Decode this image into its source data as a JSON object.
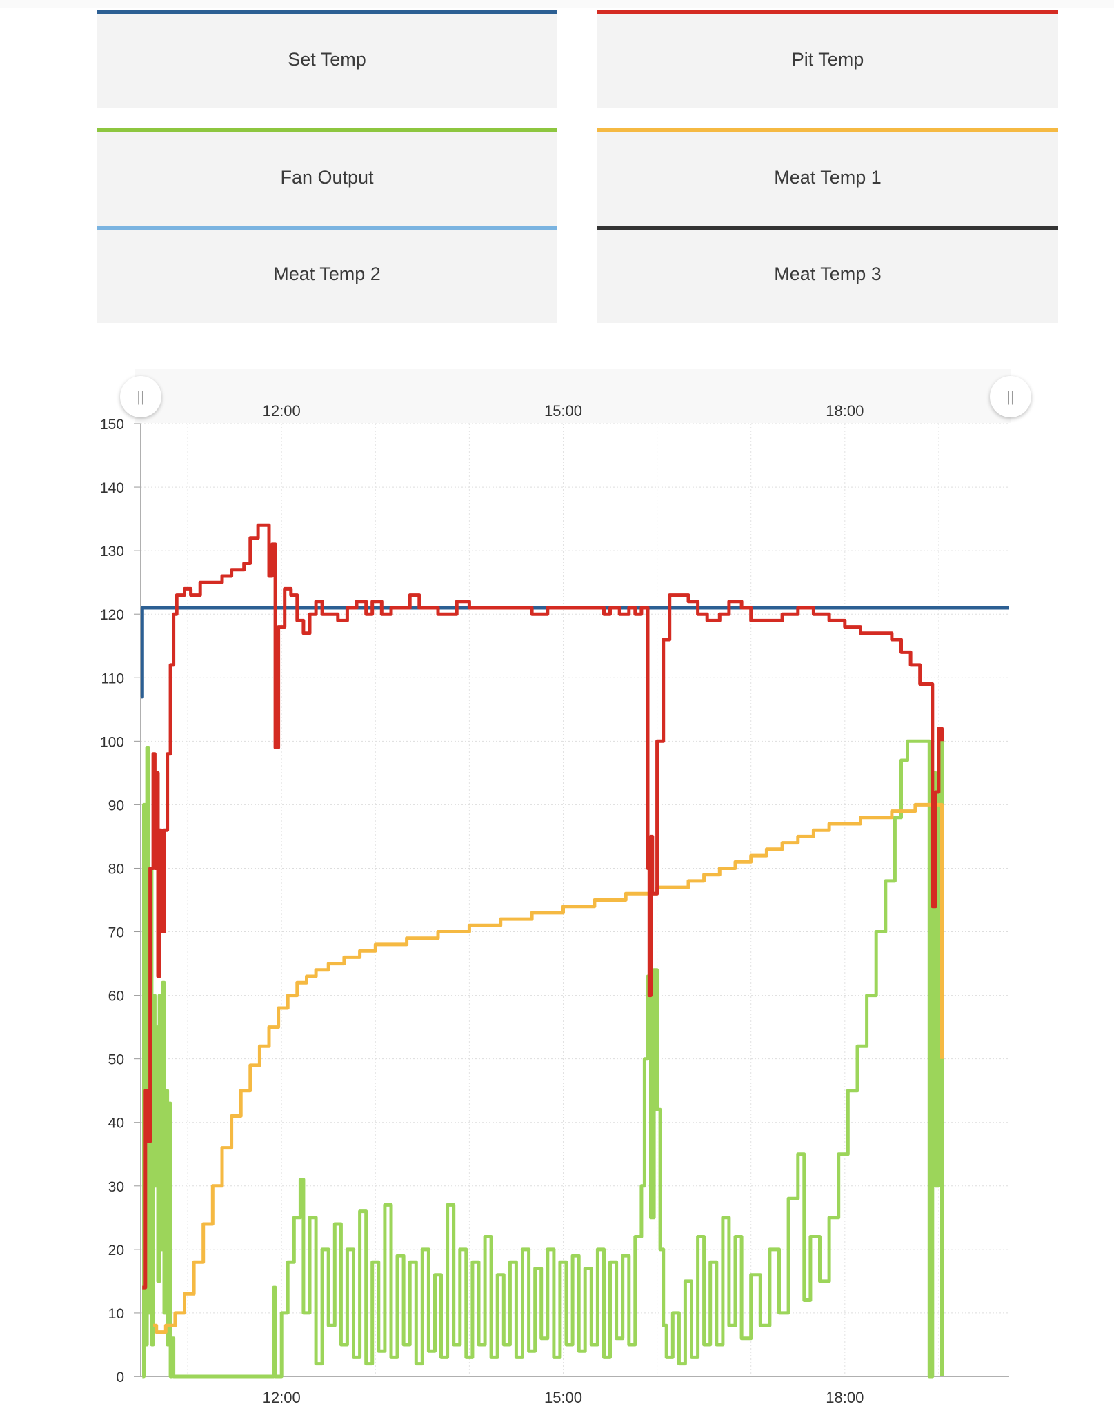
{
  "legend": [
    {
      "label": "Set Temp",
      "color": "#2c5f93"
    },
    {
      "label": "Pit Temp",
      "color": "#d42b22"
    },
    {
      "label": "Fan Output",
      "color": "#8dc63f"
    },
    {
      "label": "Meat Temp 1",
      "color": "#f5b942"
    },
    {
      "label": "Meat Temp 2",
      "color": "#7ab3e0"
    },
    {
      "label": "Meat Temp 3",
      "color": "#333333"
    }
  ],
  "navigator": {
    "left_handle": "||",
    "right_handle": "||"
  },
  "chart_data": {
    "type": "line",
    "x_start": "10:30",
    "x_end": "19:45",
    "xticks": [
      "12:00",
      "15:00",
      "18:00"
    ],
    "yticks": [
      0,
      10,
      20,
      30,
      40,
      50,
      60,
      70,
      80,
      90,
      100,
      110,
      120,
      130,
      140,
      150
    ],
    "ylim": [
      0,
      150
    ],
    "grid": true,
    "series": [
      {
        "name": "Set Temp",
        "color": "#2c5f93",
        "points": [
          [
            "10:30",
            107
          ],
          [
            "10:31",
            121
          ],
          [
            "19:45",
            121
          ]
        ]
      },
      {
        "name": "Pit Temp",
        "color": "#d42b22",
        "points": [
          [
            "10:31",
            14
          ],
          [
            "10:33",
            45
          ],
          [
            "10:34",
            37
          ],
          [
            "10:36",
            80
          ],
          [
            "10:38",
            98
          ],
          [
            "10:39",
            80
          ],
          [
            "10:40",
            95
          ],
          [
            "10:41",
            63
          ],
          [
            "10:42",
            86
          ],
          [
            "10:43",
            70
          ],
          [
            "10:45",
            86
          ],
          [
            "10:47",
            98
          ],
          [
            "10:49",
            112
          ],
          [
            "10:51",
            120
          ],
          [
            "10:53",
            123
          ],
          [
            "10:58",
            124
          ],
          [
            "11:02",
            123
          ],
          [
            "11:08",
            125
          ],
          [
            "11:20",
            125
          ],
          [
            "11:22",
            126
          ],
          [
            "11:28",
            127
          ],
          [
            "11:36",
            128
          ],
          [
            "11:40",
            132
          ],
          [
            "11:45",
            134
          ],
          [
            "11:50",
            134
          ],
          [
            "11:52",
            126
          ],
          [
            "11:54",
            131
          ],
          [
            "11:56",
            99
          ],
          [
            "11:58",
            118
          ],
          [
            "12:02",
            124
          ],
          [
            "12:06",
            123
          ],
          [
            "12:10",
            119
          ],
          [
            "12:14",
            117
          ],
          [
            "12:18",
            120
          ],
          [
            "12:22",
            122
          ],
          [
            "12:26",
            120
          ],
          [
            "12:32",
            120
          ],
          [
            "12:36",
            119
          ],
          [
            "12:42",
            121
          ],
          [
            "12:48",
            122
          ],
          [
            "12:54",
            120
          ],
          [
            "12:58",
            122
          ],
          [
            "13:04",
            120
          ],
          [
            "13:10",
            121
          ],
          [
            "13:16",
            121
          ],
          [
            "13:22",
            123
          ],
          [
            "13:28",
            121
          ],
          [
            "13:34",
            121
          ],
          [
            "13:40",
            120
          ],
          [
            "13:46",
            120
          ],
          [
            "13:52",
            122
          ],
          [
            "14:00",
            121
          ],
          [
            "14:10",
            121
          ],
          [
            "14:20",
            121
          ],
          [
            "14:30",
            121
          ],
          [
            "14:40",
            120
          ],
          [
            "14:50",
            121
          ],
          [
            "15:00",
            121
          ],
          [
            "15:10",
            121
          ],
          [
            "15:20",
            121
          ],
          [
            "15:26",
            120
          ],
          [
            "15:30",
            121
          ],
          [
            "15:36",
            120
          ],
          [
            "15:42",
            121
          ],
          [
            "15:46",
            120
          ],
          [
            "15:50",
            121
          ],
          [
            "15:53",
            121
          ],
          [
            "15:54",
            80
          ],
          [
            "15:55",
            60
          ],
          [
            "15:56",
            85
          ],
          [
            "15:57",
            76
          ],
          [
            "16:00",
            100
          ],
          [
            "16:04",
            116
          ],
          [
            "16:08",
            123
          ],
          [
            "16:14",
            123
          ],
          [
            "16:20",
            122
          ],
          [
            "16:26",
            120
          ],
          [
            "16:32",
            119
          ],
          [
            "16:40",
            120
          ],
          [
            "16:46",
            122
          ],
          [
            "16:54",
            121
          ],
          [
            "17:00",
            119
          ],
          [
            "17:10",
            119
          ],
          [
            "17:20",
            120
          ],
          [
            "17:30",
            121
          ],
          [
            "17:40",
            120
          ],
          [
            "17:50",
            119
          ],
          [
            "18:00",
            118
          ],
          [
            "18:10",
            117
          ],
          [
            "18:20",
            117
          ],
          [
            "18:30",
            116
          ],
          [
            "18:36",
            114
          ],
          [
            "18:42",
            112
          ],
          [
            "18:48",
            109
          ],
          [
            "18:54",
            109
          ],
          [
            "18:56",
            74
          ],
          [
            "18:58",
            92
          ],
          [
            "19:00",
            102
          ],
          [
            "19:02",
            100
          ]
        ]
      },
      {
        "name": "Meat Temp 1",
        "color": "#f5b942",
        "points": [
          [
            "10:38",
            8
          ],
          [
            "10:40",
            7
          ],
          [
            "10:46",
            8
          ],
          [
            "10:52",
            10
          ],
          [
            "10:58",
            13
          ],
          [
            "11:04",
            18
          ],
          [
            "11:10",
            24
          ],
          [
            "11:16",
            30
          ],
          [
            "11:22",
            36
          ],
          [
            "11:28",
            41
          ],
          [
            "11:34",
            45
          ],
          [
            "11:40",
            49
          ],
          [
            "11:46",
            52
          ],
          [
            "11:52",
            55
          ],
          [
            "11:58",
            58
          ],
          [
            "12:04",
            60
          ],
          [
            "12:10",
            62
          ],
          [
            "12:16",
            63
          ],
          [
            "12:22",
            64
          ],
          [
            "12:30",
            65
          ],
          [
            "12:40",
            66
          ],
          [
            "12:50",
            67
          ],
          [
            "13:00",
            68
          ],
          [
            "13:20",
            69
          ],
          [
            "13:40",
            70
          ],
          [
            "14:00",
            71
          ],
          [
            "14:20",
            72
          ],
          [
            "14:40",
            73
          ],
          [
            "15:00",
            74
          ],
          [
            "15:20",
            75
          ],
          [
            "15:40",
            76
          ],
          [
            "16:00",
            77
          ],
          [
            "16:20",
            78
          ],
          [
            "16:30",
            79
          ],
          [
            "16:40",
            80
          ],
          [
            "16:50",
            81
          ],
          [
            "17:00",
            82
          ],
          [
            "17:10",
            83
          ],
          [
            "17:20",
            84
          ],
          [
            "17:30",
            85
          ],
          [
            "17:40",
            86
          ],
          [
            "17:50",
            87
          ],
          [
            "18:10",
            88
          ],
          [
            "18:30",
            89
          ],
          [
            "18:45",
            90
          ],
          [
            "19:00",
            90
          ],
          [
            "19:02",
            50
          ]
        ]
      },
      {
        "name": "Fan Output",
        "color": "#9cd55a",
        "points": [
          [
            "10:31",
            0
          ],
          [
            "10:32",
            90
          ],
          [
            "10:33",
            5
          ],
          [
            "10:34",
            99
          ],
          [
            "10:35",
            10
          ],
          [
            "10:36",
            80
          ],
          [
            "10:37",
            5
          ],
          [
            "10:38",
            60
          ],
          [
            "10:39",
            30
          ],
          [
            "10:40",
            55
          ],
          [
            "10:41",
            15
          ],
          [
            "10:42",
            60
          ],
          [
            "10:43",
            20
          ],
          [
            "10:44",
            62
          ],
          [
            "10:45",
            10
          ],
          [
            "10:46",
            45
          ],
          [
            "10:47",
            5
          ],
          [
            "10:48",
            43
          ],
          [
            "10:49",
            0
          ],
          [
            "10:50",
            6
          ],
          [
            "10:51",
            0
          ],
          [
            "11:54",
            0
          ],
          [
            "11:55",
            14
          ],
          [
            "11:56",
            0
          ],
          [
            "12:00",
            10
          ],
          [
            "12:04",
            18
          ],
          [
            "12:08",
            25
          ],
          [
            "12:12",
            31
          ],
          [
            "12:14",
            10
          ],
          [
            "12:18",
            25
          ],
          [
            "12:22",
            2
          ],
          [
            "12:26",
            20
          ],
          [
            "12:30",
            8
          ],
          [
            "12:34",
            24
          ],
          [
            "12:38",
            5
          ],
          [
            "12:42",
            20
          ],
          [
            "12:46",
            3
          ],
          [
            "12:50",
            26
          ],
          [
            "12:54",
            2
          ],
          [
            "12:58",
            18
          ],
          [
            "13:02",
            4
          ],
          [
            "13:06",
            27
          ],
          [
            "13:10",
            3
          ],
          [
            "13:14",
            19
          ],
          [
            "13:18",
            5
          ],
          [
            "13:22",
            18
          ],
          [
            "13:26",
            2
          ],
          [
            "13:30",
            20
          ],
          [
            "13:34",
            4
          ],
          [
            "13:38",
            16
          ],
          [
            "13:42",
            3
          ],
          [
            "13:46",
            27
          ],
          [
            "13:50",
            5
          ],
          [
            "13:54",
            20
          ],
          [
            "13:58",
            3
          ],
          [
            "14:02",
            18
          ],
          [
            "14:06",
            5
          ],
          [
            "14:10",
            22
          ],
          [
            "14:14",
            3
          ],
          [
            "14:18",
            16
          ],
          [
            "14:22",
            5
          ],
          [
            "14:26",
            18
          ],
          [
            "14:30",
            3
          ],
          [
            "14:34",
            20
          ],
          [
            "14:38",
            4
          ],
          [
            "14:42",
            17
          ],
          [
            "14:46",
            6
          ],
          [
            "14:50",
            20
          ],
          [
            "14:54",
            3
          ],
          [
            "14:58",
            18
          ],
          [
            "15:02",
            5
          ],
          [
            "15:06",
            19
          ],
          [
            "15:10",
            4
          ],
          [
            "15:14",
            17
          ],
          [
            "15:18",
            5
          ],
          [
            "15:22",
            20
          ],
          [
            "15:26",
            3
          ],
          [
            "15:30",
            18
          ],
          [
            "15:34",
            6
          ],
          [
            "15:38",
            19
          ],
          [
            "15:42",
            5
          ],
          [
            "15:46",
            22
          ],
          [
            "15:50",
            30
          ],
          [
            "15:52",
            50
          ],
          [
            "15:54",
            63
          ],
          [
            "15:56",
            25
          ],
          [
            "15:58",
            64
          ],
          [
            "16:00",
            42
          ],
          [
            "16:02",
            20
          ],
          [
            "16:04",
            8
          ],
          [
            "16:06",
            3
          ],
          [
            "16:10",
            10
          ],
          [
            "16:14",
            2
          ],
          [
            "16:18",
            15
          ],
          [
            "16:22",
            3
          ],
          [
            "16:26",
            22
          ],
          [
            "16:30",
            5
          ],
          [
            "16:34",
            18
          ],
          [
            "16:38",
            5
          ],
          [
            "16:42",
            25
          ],
          [
            "16:46",
            8
          ],
          [
            "16:50",
            22
          ],
          [
            "16:54",
            6
          ],
          [
            "17:00",
            16
          ],
          [
            "17:06",
            8
          ],
          [
            "17:12",
            20
          ],
          [
            "17:18",
            10
          ],
          [
            "17:24",
            28
          ],
          [
            "17:30",
            35
          ],
          [
            "17:34",
            12
          ],
          [
            "17:38",
            22
          ],
          [
            "17:44",
            15
          ],
          [
            "17:50",
            25
          ],
          [
            "17:56",
            35
          ],
          [
            "18:02",
            45
          ],
          [
            "18:08",
            52
          ],
          [
            "18:14",
            60
          ],
          [
            "18:20",
            70
          ],
          [
            "18:26",
            78
          ],
          [
            "18:32",
            88
          ],
          [
            "18:36",
            97
          ],
          [
            "18:40",
            100
          ],
          [
            "18:52",
            100
          ],
          [
            "18:54",
            0
          ],
          [
            "18:56",
            95
          ],
          [
            "18:58",
            30
          ],
          [
            "19:00",
            100
          ],
          [
            "19:02",
            0
          ]
        ]
      }
    ]
  }
}
